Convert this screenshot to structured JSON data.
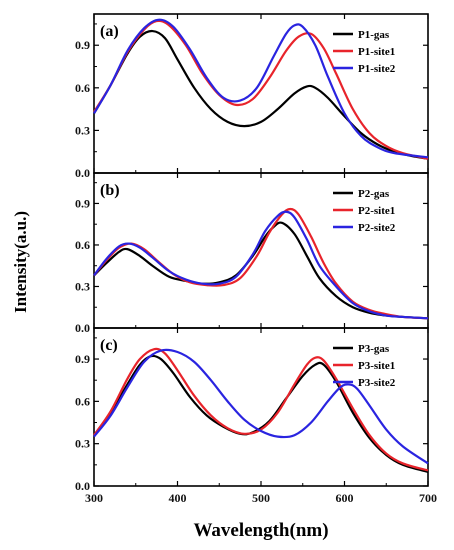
{
  "chart_data": {
    "type": "line",
    "xlabel": "Wavelength(nm)",
    "ylabel": "Intensity(a.u.)",
    "xlim": [
      300,
      700
    ],
    "x_ticks": [
      300,
      400,
      500,
      600,
      700
    ],
    "ylim": [
      0,
      1.12
    ],
    "y_ticks": [
      0.0,
      0.3,
      0.6,
      0.9
    ],
    "y_tick_labels": [
      "0.0",
      "0.3",
      "0.6",
      "0.9"
    ],
    "grid": false,
    "legend_position": "top-right",
    "panels": [
      {
        "label": "(a)",
        "series": [
          {
            "name": "P1-gas",
            "color": "#000000",
            "x": [
              300,
              320,
              340,
              355,
              370,
              385,
              400,
              420,
              440,
              460,
              480,
              500,
              520,
              540,
              555,
              565,
              580,
              600,
              620,
              640,
              660,
              680,
              700
            ],
            "y": [
              0.42,
              0.62,
              0.84,
              0.96,
              1.0,
              0.95,
              0.8,
              0.6,
              0.45,
              0.36,
              0.33,
              0.36,
              0.45,
              0.56,
              0.61,
              0.6,
              0.53,
              0.4,
              0.28,
              0.2,
              0.15,
              0.12,
              0.1
            ]
          },
          {
            "name": "P1-site1",
            "color": "#e8242b",
            "x": [
              300,
              320,
              340,
              360,
              375,
              390,
              410,
              430,
              450,
              470,
              490,
              510,
              530,
              545,
              560,
              575,
              590,
              610,
              630,
              650,
              670,
              700
            ],
            "y": [
              0.43,
              0.62,
              0.85,
              1.01,
              1.07,
              1.04,
              0.9,
              0.7,
              0.55,
              0.48,
              0.52,
              0.67,
              0.86,
              0.96,
              0.98,
              0.88,
              0.7,
              0.45,
              0.28,
              0.19,
              0.14,
              0.1
            ]
          },
          {
            "name": "P1-site2",
            "color": "#2a24e0",
            "x": [
              300,
              320,
              340,
              360,
              378,
              395,
              415,
              435,
              455,
              475,
              495,
              515,
              530,
              540,
              550,
              565,
              580,
              600,
              620,
              640,
              660,
              700
            ],
            "y": [
              0.42,
              0.62,
              0.86,
              1.02,
              1.08,
              1.03,
              0.87,
              0.67,
              0.53,
              0.51,
              0.6,
              0.82,
              0.98,
              1.04,
              1.03,
              0.9,
              0.68,
              0.42,
              0.26,
              0.18,
              0.14,
              0.11
            ]
          }
        ]
      },
      {
        "label": "(b)",
        "series": [
          {
            "name": "P2-gas",
            "color": "#000000",
            "x": [
              300,
              315,
              330,
              340,
              355,
              370,
              390,
              410,
              430,
              450,
              470,
              490,
              505,
              515,
              525,
              540,
              555,
              570,
              590,
              610,
              630,
              650,
              670,
              700
            ],
            "y": [
              0.38,
              0.47,
              0.55,
              0.57,
              0.52,
              0.45,
              0.37,
              0.34,
              0.32,
              0.33,
              0.38,
              0.52,
              0.66,
              0.73,
              0.76,
              0.68,
              0.52,
              0.36,
              0.23,
              0.15,
              0.11,
              0.09,
              0.08,
              0.07
            ]
          },
          {
            "name": "P2-site1",
            "color": "#e8242b",
            "x": [
              300,
              315,
              330,
              345,
              360,
              375,
              395,
              415,
              435,
              455,
              475,
              495,
              510,
              525,
              535,
              545,
              560,
              575,
              590,
              610,
              630,
              650,
              670,
              700
            ],
            "y": [
              0.38,
              0.49,
              0.58,
              0.61,
              0.57,
              0.49,
              0.39,
              0.33,
              0.31,
              0.31,
              0.36,
              0.52,
              0.69,
              0.82,
              0.86,
              0.82,
              0.66,
              0.47,
              0.32,
              0.19,
              0.13,
              0.1,
              0.08,
              0.07
            ]
          },
          {
            "name": "P2-site2",
            "color": "#2a24e0",
            "x": [
              300,
              315,
              330,
              342,
              355,
              370,
              390,
              410,
              430,
              450,
              470,
              490,
              505,
              520,
              530,
              540,
              555,
              570,
              590,
              610,
              630,
              650,
              670,
              700
            ],
            "y": [
              0.38,
              0.5,
              0.59,
              0.61,
              0.58,
              0.51,
              0.41,
              0.35,
              0.32,
              0.32,
              0.37,
              0.53,
              0.7,
              0.81,
              0.84,
              0.8,
              0.64,
              0.45,
              0.3,
              0.18,
              0.12,
              0.09,
              0.08,
              0.07
            ]
          }
        ]
      },
      {
        "label": "(c)",
        "series": [
          {
            "name": "P3-gas",
            "color": "#000000",
            "x": [
              300,
              320,
              340,
              355,
              368,
              380,
              395,
              415,
              435,
              455,
              475,
              490,
              510,
              530,
              550,
              565,
              575,
              590,
              610,
              630,
              650,
              670,
              700
            ],
            "y": [
              0.36,
              0.52,
              0.72,
              0.86,
              0.92,
              0.9,
              0.8,
              0.63,
              0.5,
              0.42,
              0.37,
              0.38,
              0.46,
              0.62,
              0.78,
              0.86,
              0.86,
              0.74,
              0.52,
              0.34,
              0.22,
              0.15,
              0.1
            ]
          },
          {
            "name": "P3-site1",
            "color": "#e8242b",
            "x": [
              300,
              320,
              340,
              355,
              372,
              385,
              400,
              420,
              440,
              460,
              480,
              500,
              520,
              540,
              555,
              565,
              575,
              590,
              610,
              630,
              650,
              670,
              700
            ],
            "y": [
              0.36,
              0.53,
              0.76,
              0.9,
              0.97,
              0.94,
              0.82,
              0.64,
              0.5,
              0.41,
              0.37,
              0.4,
              0.52,
              0.72,
              0.86,
              0.91,
              0.89,
              0.76,
              0.55,
              0.36,
              0.23,
              0.16,
              0.11
            ]
          },
          {
            "name": "P3-site2",
            "color": "#2a24e0",
            "x": [
              300,
              320,
              340,
              360,
              380,
              400,
              420,
              440,
              460,
              480,
              500,
              520,
              540,
              560,
              580,
              595,
              605,
              615,
              630,
              650,
              670,
              700
            ],
            "y": [
              0.35,
              0.5,
              0.7,
              0.88,
              0.96,
              0.95,
              0.88,
              0.75,
              0.6,
              0.47,
              0.39,
              0.35,
              0.36,
              0.45,
              0.6,
              0.7,
              0.72,
              0.69,
              0.57,
              0.4,
              0.28,
              0.16
            ]
          }
        ]
      }
    ]
  }
}
